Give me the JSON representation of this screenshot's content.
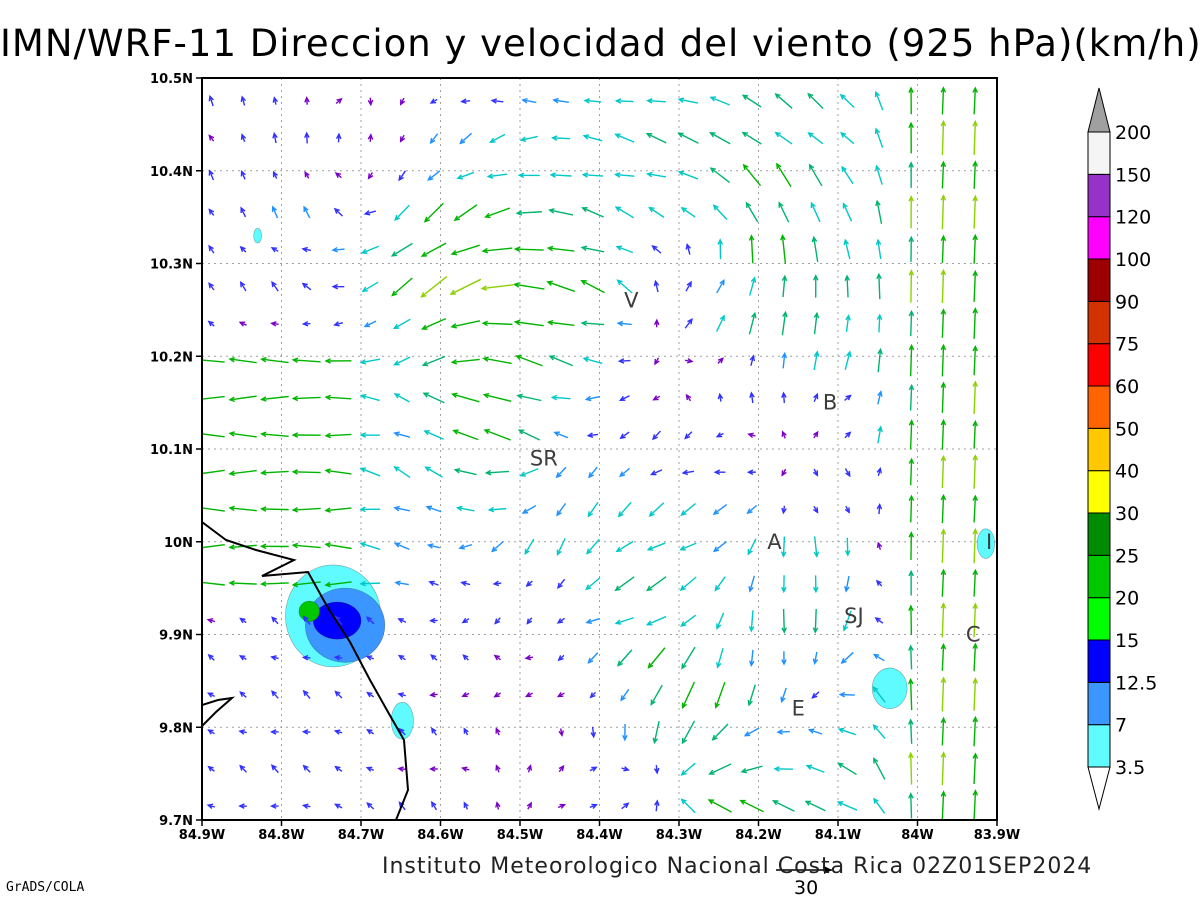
{
  "title": "IMN/WRF-11 Direccion y velocidad del viento (925 hPa)(km/h)",
  "credit": "Instituto Meteorologico Nacional Costa Rica 02Z01SEP2024",
  "software_credit": "GrADS/COLA",
  "reference_vector": {
    "value": "30"
  },
  "map": {
    "lon_range": [
      -84.9,
      -83.9
    ],
    "lat_range": [
      9.7,
      10.5
    ],
    "grid": true,
    "x_ticks": [
      {
        "lon": -84.9,
        "label": "84.9W"
      },
      {
        "lon": -84.8,
        "label": "84.8W"
      },
      {
        "lon": -84.7,
        "label": "84.7W"
      },
      {
        "lon": -84.6,
        "label": "84.6W"
      },
      {
        "lon": -84.5,
        "label": "84.5W"
      },
      {
        "lon": -84.4,
        "label": "84.4W"
      },
      {
        "lon": -84.3,
        "label": "84.3W"
      },
      {
        "lon": -84.2,
        "label": "84.2W"
      },
      {
        "lon": -84.1,
        "label": "84.1W"
      },
      {
        "lon": -84.0,
        "label": "84W"
      },
      {
        "lon": -83.9,
        "label": "83.9W"
      }
    ],
    "y_ticks": [
      {
        "lat": 10.5,
        "label": "10.5N"
      },
      {
        "lat": 10.4,
        "label": "10.4N"
      },
      {
        "lat": 10.3,
        "label": "10.3N"
      },
      {
        "lat": 10.2,
        "label": "10.2N"
      },
      {
        "lat": 10.1,
        "label": "10.1N"
      },
      {
        "lat": 10.0,
        "label": "10N"
      },
      {
        "lat": 9.9,
        "label": "9.9N"
      },
      {
        "lat": 9.8,
        "label": "9.8N"
      },
      {
        "lat": 9.7,
        "label": "9.7N"
      }
    ],
    "cities": [
      {
        "label": "V",
        "lon": -84.36,
        "lat": 10.26
      },
      {
        "label": "B",
        "lon": -84.11,
        "lat": 10.15
      },
      {
        "label": "SR",
        "lon": -84.47,
        "lat": 10.09
      },
      {
        "label": "A",
        "lon": -84.18,
        "lat": 10.0
      },
      {
        "label": "I",
        "lon": -83.91,
        "lat": 10.0
      },
      {
        "label": "SJ",
        "lon": -84.08,
        "lat": 9.92
      },
      {
        "label": "C",
        "lon": -83.93,
        "lat": 9.9
      },
      {
        "label": "E",
        "lon": -84.15,
        "lat": 9.82
      }
    ],
    "coastline_color": "#000000"
  },
  "legend": {
    "levels": [
      "3.5",
      "7",
      "12.5",
      "15",
      "20",
      "25",
      "30",
      "40",
      "50",
      "60",
      "75",
      "90",
      "100",
      "120",
      "150",
      "200"
    ],
    "colors": [
      "#60fbff",
      "#3c96ff",
      "#0000ff",
      "#00ff00",
      "#00c800",
      "#008c00",
      "#ffff00",
      "#ffc800",
      "#ff6400",
      "#ff0000",
      "#d23200",
      "#9c0000",
      "#ff00ff",
      "#9632c8",
      "#f5f5f5",
      "#a0a0a0"
    ],
    "over_color": "#a0a0a0",
    "under_color": "#ffffff"
  },
  "vector_speed_colors": [
    {
      "max": 5,
      "color": "#7a00c8"
    },
    {
      "max": 10,
      "color": "#3030ff"
    },
    {
      "max": 14,
      "color": "#1e90ff"
    },
    {
      "max": 18,
      "color": "#00c8c8"
    },
    {
      "max": 22,
      "color": "#00b46e"
    },
    {
      "max": 27,
      "color": "#00b400"
    },
    {
      "max": 32,
      "color": "#8cd200"
    },
    {
      "max": 38,
      "color": "#e6e600"
    },
    {
      "max": 45,
      "color": "#e6aa00"
    },
    {
      "max": 55,
      "color": "#e66400"
    },
    {
      "max": 999,
      "color": "#e61e1e"
    }
  ],
  "speed_contours": [
    {
      "lon": -84.735,
      "lat": 9.92,
      "level": "3.5",
      "rlon": 0.06,
      "rlat": 0.055
    },
    {
      "lon": -84.72,
      "lat": 9.91,
      "level": "7",
      "rlon": 0.05,
      "rlat": 0.04
    },
    {
      "lon": -84.73,
      "lat": 9.915,
      "level": "12.5",
      "rlon": 0.03,
      "rlat": 0.02
    },
    {
      "lon": -84.765,
      "lat": 9.925,
      "level": "20",
      "rlon": 0.013,
      "rlat": 0.011
    },
    {
      "lon": -84.648,
      "lat": 9.807,
      "level": "3.5",
      "rlon": 0.014,
      "rlat": 0.02
    },
    {
      "lon": -84.035,
      "lat": 9.842,
      "level": "3.5",
      "rlon": 0.022,
      "rlat": 0.022
    },
    {
      "lon": -83.914,
      "lat": 9.998,
      "level": "3.5",
      "rlon": 0.011,
      "rlat": 0.016
    },
    {
      "lon": -84.83,
      "lat": 10.33,
      "level": "3.5",
      "rlon": 0.005,
      "rlat": 0.008
    }
  ],
  "wind_field": {
    "sources": [
      {
        "lon": -84.35,
        "lat": 10.24,
        "s": 14
      },
      {
        "lon": -84.48,
        "lat": 10.08,
        "s": 14
      },
      {
        "lon": -84.18,
        "lat": 10.03,
        "s": 10
      },
      {
        "lon": -84.28,
        "lat": 9.88,
        "s": 12
      },
      {
        "lon": -84.13,
        "lat": 10.16,
        "s": 8
      }
    ],
    "sinks": [
      {
        "lon": -84.3,
        "lat": 9.74,
        "s": 24
      },
      {
        "lon": -84.1,
        "lat": 9.86,
        "s": 14
      },
      {
        "lon": -84.62,
        "lat": 10.18,
        "s": 14
      },
      {
        "lon": -84.42,
        "lat": 9.96,
        "s": 10
      }
    ],
    "vortices": [
      {
        "lon": -84.25,
        "lat": 10.33,
        "s": 14
      },
      {
        "lon": -84.68,
        "lat": 10.36,
        "s": -12
      },
      {
        "lon": -84.55,
        "lat": 10.25,
        "s": 8
      }
    ],
    "background": {
      "u": -6,
      "v": 3
    },
    "east_northerly": {
      "lon_start": -84.08,
      "u": 4,
      "v": 26
    },
    "west_easterly": {
      "lon_end": -84.62,
      "lat_start": 9.95,
      "lat_end": 10.2,
      "u": -24,
      "v": 0
    }
  }
}
